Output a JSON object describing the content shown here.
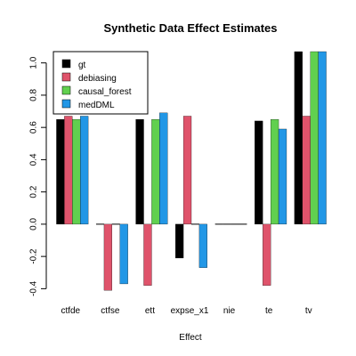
{
  "chart_data": {
    "type": "bar",
    "title": "Synthetic Data Effect Estimates",
    "xlabel": "Effect",
    "ylabel": "",
    "ylim": [
      -0.42,
      1.07
    ],
    "yticks": [
      -0.4,
      -0.2,
      0.0,
      0.2,
      0.4,
      0.6,
      0.8,
      1.0
    ],
    "ytick_labels": [
      "-0.4",
      "-0.2",
      "0.0",
      "0.2",
      "0.4",
      "0.6",
      "0.8",
      "1.0"
    ],
    "categories": [
      "ctfde",
      "ctfse",
      "ett",
      "expse_x1",
      "nie",
      "te",
      "tv"
    ],
    "legend_position": "top-left",
    "series": [
      {
        "name": "gt",
        "color": "#000000",
        "values": [
          0.65,
          0.0,
          0.65,
          -0.21,
          0.0,
          0.64,
          1.07
        ]
      },
      {
        "name": "debiasing",
        "color": "#DF536B",
        "values": [
          0.67,
          -0.41,
          -0.38,
          0.67,
          0.0,
          -0.38,
          0.67
        ]
      },
      {
        "name": "causal_forest",
        "color": "#61D04F",
        "values": [
          0.65,
          0.0,
          0.65,
          0.0,
          0.0,
          0.65,
          1.07
        ]
      },
      {
        "name": "medDML",
        "color": "#2297E6",
        "values": [
          0.67,
          -0.37,
          0.69,
          -0.27,
          0.0,
          0.59,
          1.07
        ]
      }
    ]
  }
}
